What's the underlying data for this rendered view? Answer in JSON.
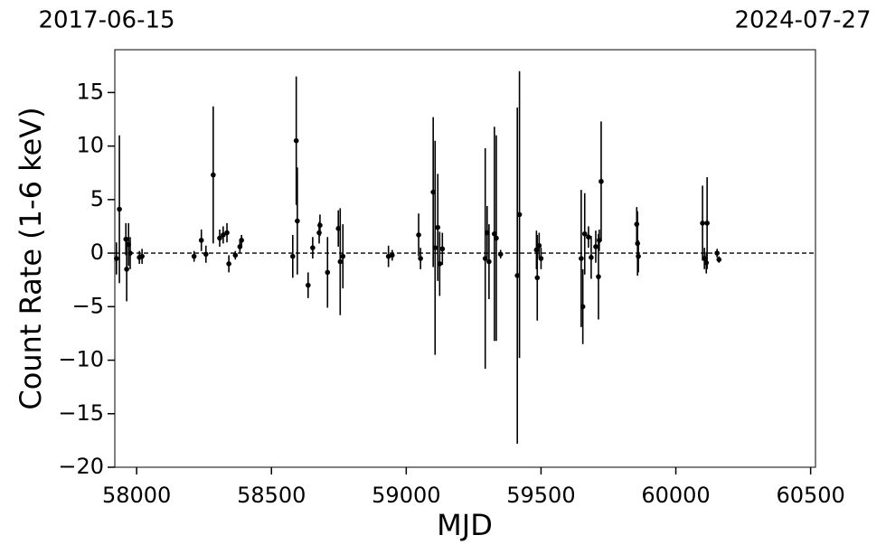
{
  "chart_data": {
    "type": "errorbar",
    "x_label": "MJD",
    "y_label": "Count Rate (1-6 keV)",
    "annotations": [
      "2017-06-15",
      "2024-07-27"
    ],
    "xlim": [
      57919,
      60518
    ],
    "ylim": [
      -20,
      19
    ],
    "xticks": [
      58000,
      58500,
      59000,
      59500,
      60000,
      60500
    ],
    "yticks": [
      {
        "value": -20,
        "label": "−20"
      },
      {
        "value": -15,
        "label": "−15"
      },
      {
        "value": -10,
        "label": "−10"
      },
      {
        "value": -5,
        "label": "−5"
      },
      0,
      5,
      10,
      15
    ],
    "reference_line": 0,
    "color": "#000000",
    "series": [
      {
        "x": [
          57925,
          57936,
          57960,
          57963,
          57970,
          57976,
          58010,
          58020,
          58213,
          58240,
          58257,
          58284,
          58308,
          58321,
          58335,
          58342,
          58366,
          58383,
          58389,
          58579,
          58592,
          58596,
          58636,
          58653,
          58677,
          58680,
          58708,
          58748,
          58755,
          58765,
          58934,
          58948,
          59046,
          59053,
          59100,
          59107,
          59117,
          59124,
          59134,
          59293,
          59300,
          59307,
          59327,
          59334,
          59350,
          59412,
          59420,
          59483,
          59486,
          59493,
          59500,
          59649,
          59655,
          59662,
          59676,
          59686,
          59703,
          59713,
          59716,
          59723,
          59855,
          59858,
          59861,
          60099,
          60106,
          60116,
          60113,
          60153,
          60160
        ],
        "values": [
          -0.5,
          4.1,
          1.3,
          -1.5,
          0.8,
          0,
          -0.4,
          -0.3,
          -0.3,
          1.2,
          -0.1,
          7.3,
          1.4,
          1.7,
          1.9,
          -1.0,
          -0.2,
          0.6,
          1.2,
          -0.3,
          10.5,
          3,
          -3.0,
          0.5,
          1.9,
          2.6,
          -1.8,
          2.3,
          -0.8,
          -0.3,
          -0.3,
          -0.2,
          1.7,
          -0.5,
          5.7,
          0.5,
          2.4,
          -1,
          0.4,
          -0.5,
          1.9,
          -0.8,
          1.8,
          1.4,
          -0.1,
          -2.1,
          3.6,
          0.3,
          -2.3,
          0.7,
          -0.5,
          -0.5,
          -5,
          1.8,
          1.5,
          -0.4,
          0.6,
          -2.2,
          1.2,
          6.7,
          2.7,
          0.9,
          -0.3,
          2.8,
          -0.5,
          2.8,
          -0.9,
          0,
          -0.6
        ],
        "errors": [
          1.5,
          6.9,
          1.5,
          3,
          2,
          1.5,
          0.6,
          0.7,
          0.5,
          1,
          0.8,
          6.4,
          0.8,
          0.8,
          0.9,
          0.8,
          0.4,
          0.6,
          0.5,
          2,
          6,
          5,
          1.2,
          1,
          1,
          1,
          3.3,
          1.7,
          5,
          3,
          1,
          0.5,
          2,
          1,
          7,
          10,
          5,
          3,
          1.5,
          10.3,
          2.5,
          3.5,
          10,
          9.6,
          0.4,
          15.7,
          13.4,
          1.8,
          4,
          1.2,
          1,
          6.4,
          3.5,
          3.8,
          1,
          2,
          1.5,
          4,
          1,
          5.6,
          1.6,
          3,
          1.5,
          3.5,
          1,
          4.3,
          1,
          0.4,
          0.3
        ]
      }
    ]
  }
}
